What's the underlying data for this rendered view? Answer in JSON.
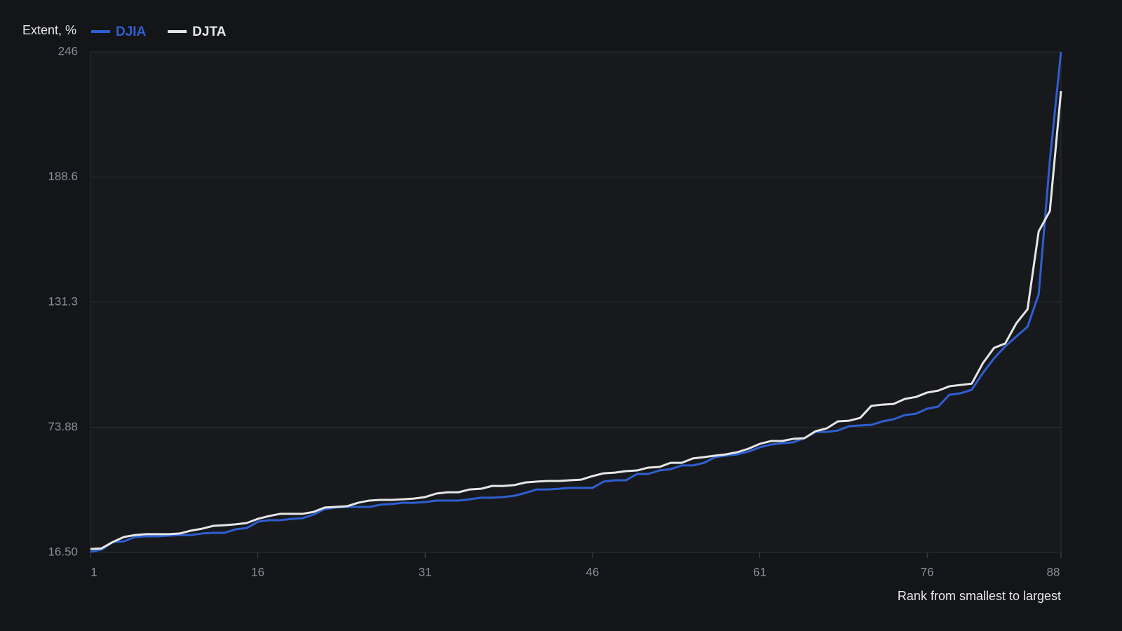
{
  "chart_data": {
    "type": "line",
    "y_label": "Extent, %",
    "x_label": "Rank from smallest to largest",
    "x": [
      1,
      2,
      3,
      4,
      5,
      6,
      7,
      8,
      9,
      10,
      11,
      12,
      13,
      14,
      15,
      16,
      17,
      18,
      19,
      20,
      21,
      22,
      23,
      24,
      25,
      26,
      27,
      28,
      29,
      30,
      31,
      32,
      33,
      34,
      35,
      36,
      37,
      38,
      39,
      40,
      41,
      42,
      43,
      44,
      45,
      46,
      47,
      48,
      49,
      50,
      51,
      52,
      53,
      54,
      55,
      56,
      57,
      58,
      59,
      60,
      61,
      62,
      63,
      64,
      65,
      66,
      67,
      68,
      69,
      70,
      71,
      72,
      73,
      74,
      75,
      76,
      77,
      78,
      79,
      80,
      81,
      82,
      83,
      84,
      85,
      86,
      87,
      88
    ],
    "series": [
      {
        "name": "DJIA",
        "color": "#2f5fd0",
        "values": [
          16.8,
          17.8,
          21.3,
          21.6,
          23.6,
          23.9,
          23.9,
          24.2,
          24.5,
          24.5,
          25.2,
          25.5,
          25.5,
          27.1,
          27.7,
          30.6,
          31.3,
          31.3,
          31.9,
          32.2,
          33.9,
          36.4,
          37.1,
          37.4,
          37.4,
          37.4,
          38.4,
          38.7,
          39.3,
          39.3,
          39.6,
          40.3,
          40.3,
          40.3,
          40.9,
          41.6,
          41.6,
          41.9,
          42.5,
          43.8,
          45.4,
          45.4,
          45.7,
          46.1,
          46.1,
          46.1,
          49.0,
          49.6,
          49.6,
          52.5,
          52.5,
          54.1,
          54.7,
          56.4,
          56.4,
          57.6,
          60.2,
          60.9,
          61.5,
          62.8,
          64.7,
          66.0,
          66.6,
          67.0,
          68.9,
          71.8,
          71.8,
          72.4,
          74.4,
          74.7,
          75.0,
          76.6,
          77.6,
          79.5,
          80.1,
          82.4,
          83.4,
          88.8,
          89.5,
          91.1,
          98.8,
          105.5,
          111.0,
          115.5,
          120.0,
          134.8,
          196,
          246
        ]
      },
      {
        "name": "DJTA",
        "color": "#e6e6e6",
        "values": [
          18.1,
          18.4,
          21.3,
          23.6,
          24.5,
          24.9,
          24.9,
          24.9,
          25.2,
          26.5,
          27.4,
          28.7,
          29.0,
          29.4,
          30.0,
          31.9,
          33.2,
          34.2,
          34.2,
          34.2,
          35.1,
          37.1,
          37.4,
          37.7,
          39.3,
          40.3,
          40.6,
          40.6,
          40.9,
          41.2,
          41.9,
          43.5,
          44.1,
          44.1,
          45.4,
          45.7,
          47.0,
          47.0,
          47.4,
          48.6,
          49.0,
          49.3,
          49.3,
          49.6,
          49.9,
          51.5,
          52.8,
          53.1,
          53.8,
          54.1,
          55.4,
          55.7,
          57.6,
          57.6,
          59.6,
          60.2,
          60.9,
          61.5,
          62.5,
          64.1,
          66.3,
          67.6,
          67.6,
          68.6,
          68.9,
          72.1,
          73.4,
          76.6,
          76.9,
          78.2,
          83.7,
          84.3,
          84.6,
          86.9,
          87.8,
          89.8,
          90.7,
          92.7,
          93.3,
          93.9,
          103.3,
          110.3,
          112.3,
          121.6,
          128.0,
          163.7,
          173.0,
          228.0
        ]
      }
    ],
    "xlim": [
      1,
      88
    ],
    "xticks": [
      1,
      16,
      31,
      46,
      61,
      76,
      88
    ],
    "ylim": [
      16.5,
      246
    ],
    "yticks": [
      {
        "value": 16.5,
        "label": "16.50"
      },
      73.88,
      131.3,
      188.6,
      246
    ],
    "grid": true
  }
}
